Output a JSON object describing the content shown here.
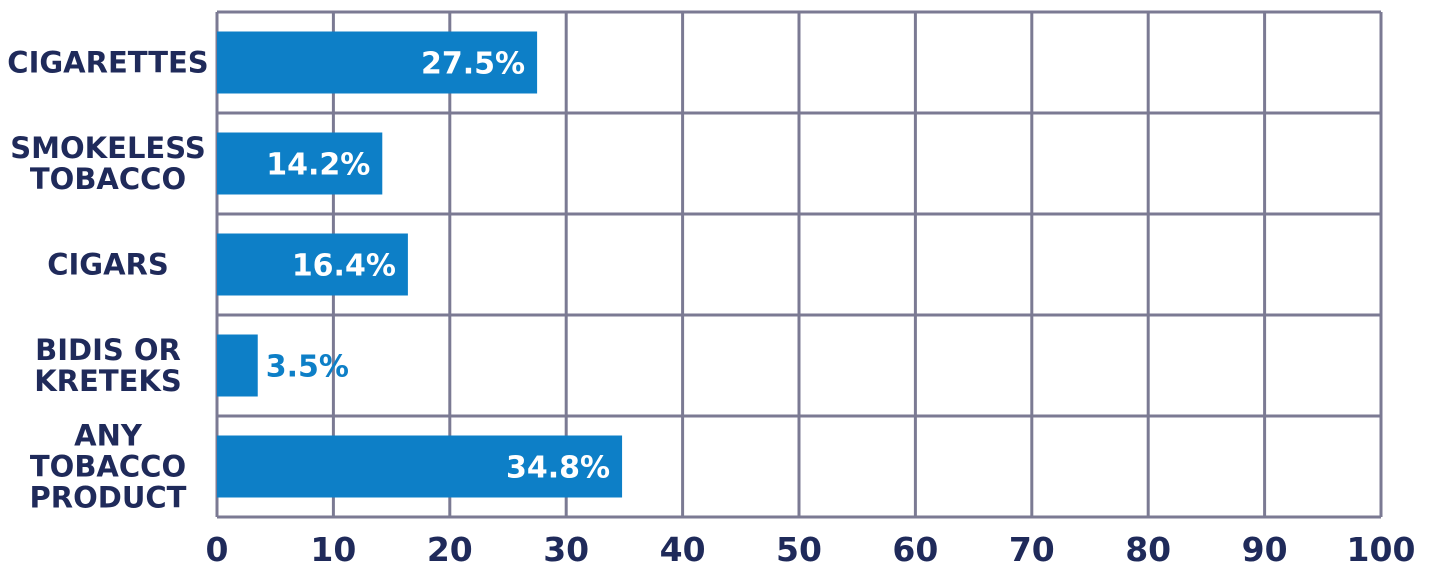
{
  "chart_data": {
    "type": "bar",
    "orientation": "horizontal",
    "categories": [
      [
        "CIGARETTES"
      ],
      [
        "SMOKELESS",
        "TOBACCO"
      ],
      [
        "CIGARS"
      ],
      [
        "BIDIS OR",
        "KRETEKS"
      ],
      [
        "ANY",
        "TOBACCO",
        "PRODUCT"
      ]
    ],
    "values": [
      27.5,
      14.2,
      16.4,
      3.5,
      34.8
    ],
    "value_labels": [
      "27.5%",
      "14.2%",
      "16.4%",
      "3.5%",
      "34.8%"
    ],
    "xlim": [
      0,
      100
    ],
    "x_ticks": [
      0,
      10,
      20,
      30,
      40,
      50,
      60,
      70,
      80,
      90,
      100
    ],
    "x_tick_labels": [
      "0",
      "10",
      "20",
      "30",
      "40",
      "50",
      "60",
      "70",
      "80",
      "90",
      "100"
    ],
    "grid": true,
    "title": "",
    "xlabel": "",
    "ylabel": "",
    "colors": {
      "bar": "#0d7fc7",
      "grid": "#7b7a93",
      "label": "#1f2a5a",
      "value_inside": "#ffffff",
      "value_outside": "#0d7fc7"
    }
  }
}
